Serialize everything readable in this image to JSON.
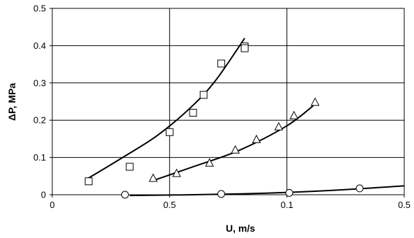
{
  "chart_data": {
    "type": "scatter",
    "title": "",
    "xlabel": "U, m/s",
    "ylabel": "ΔP, MPa",
    "grid": true,
    "legend": "none",
    "x_tick_labels": [
      "0",
      "0.5",
      "0.1",
      "0.5"
    ],
    "y_tick_labels": [
      "0",
      "0.1",
      "0.2",
      "0.3",
      "0.4",
      "0.5"
    ],
    "xlim": [
      0,
      1.5
    ],
    "ylim": [
      0,
      0.5
    ],
    "series": [
      {
        "marker": "square",
        "points": [
          {
            "x": 0.155,
            "y": 0.036
          },
          {
            "x": 0.33,
            "y": 0.075
          },
          {
            "x": 0.5,
            "y": 0.168
          },
          {
            "x": 0.6,
            "y": 0.22
          },
          {
            "x": 0.645,
            "y": 0.268
          },
          {
            "x": 0.72,
            "y": 0.352
          },
          {
            "x": 0.82,
            "y": 0.398
          },
          {
            "x": 0.82,
            "y": 0.393
          }
        ],
        "fit_curve": [
          {
            "x": 0.15,
            "y": 0.043
          },
          {
            "x": 0.3,
            "y": 0.1
          },
          {
            "x": 0.45,
            "y": 0.16
          },
          {
            "x": 0.6,
            "y": 0.24
          },
          {
            "x": 0.7,
            "y": 0.31
          },
          {
            "x": 0.82,
            "y": 0.42
          }
        ]
      },
      {
        "marker": "triangle",
        "points": [
          {
            "x": 0.43,
            "y": 0.044
          },
          {
            "x": 0.53,
            "y": 0.057
          },
          {
            "x": 0.67,
            "y": 0.085
          },
          {
            "x": 0.78,
            "y": 0.12
          },
          {
            "x": 0.87,
            "y": 0.148
          },
          {
            "x": 0.965,
            "y": 0.182
          },
          {
            "x": 1.03,
            "y": 0.212
          },
          {
            "x": 1.12,
            "y": 0.248
          }
        ],
        "fit_curve": [
          {
            "x": 0.43,
            "y": 0.038
          },
          {
            "x": 0.6,
            "y": 0.075
          },
          {
            "x": 0.8,
            "y": 0.12
          },
          {
            "x": 1.0,
            "y": 0.185
          },
          {
            "x": 1.12,
            "y": 0.243
          }
        ]
      },
      {
        "marker": "circle",
        "points": [
          {
            "x": 0.31,
            "y": 0.0
          },
          {
            "x": 0.72,
            "y": 0.002
          },
          {
            "x": 1.01,
            "y": 0.005
          },
          {
            "x": 1.31,
            "y": 0.017
          }
        ],
        "fit_curve": [
          {
            "x": 0.33,
            "y": -0.002
          },
          {
            "x": 0.6,
            "y": 0.0
          },
          {
            "x": 0.9,
            "y": 0.004
          },
          {
            "x": 1.2,
            "y": 0.012
          },
          {
            "x": 1.5,
            "y": 0.024
          }
        ]
      }
    ]
  }
}
